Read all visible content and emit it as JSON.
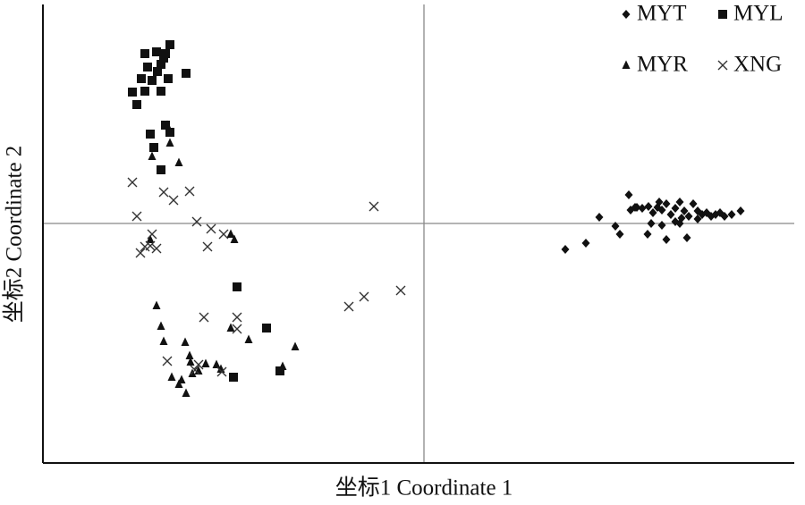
{
  "chart_data": {
    "type": "scatter",
    "xlabel": "坐标1 Coordinate 1",
    "ylabel": "坐标2 Coordinate 2",
    "xlim": [
      -4.26,
      4.14
    ],
    "ylim": [
      -2.68,
      2.45
    ],
    "origin_lines": true,
    "legend": "upper right",
    "series": [
      {
        "name": "MYT",
        "color": "#111111",
        "marker": "diamond",
        "x": [
          1.58,
          1.81,
          1.96,
          2.14,
          2.19,
          2.29,
          2.31,
          2.38,
          2.44,
          2.51,
          2.56,
          2.61,
          2.66,
          2.71,
          2.76,
          2.81,
          2.86,
          2.91,
          2.96,
          3.01,
          3.06,
          3.11,
          3.16,
          3.21,
          3.26,
          3.31,
          3.36,
          3.44,
          3.54,
          2.5,
          2.71,
          2.94,
          2.66,
          2.81,
          2.54,
          2.86,
          3.06,
          2.36,
          2.63,
          2.88
        ],
        "values": [
          -0.29,
          -0.22,
          0.07,
          -0.03,
          -0.12,
          0.32,
          0.15,
          0.18,
          0.17,
          0.19,
          0.12,
          0.18,
          0.15,
          0.22,
          0.1,
          0.17,
          0.24,
          0.14,
          0.08,
          0.22,
          0.14,
          0.1,
          0.12,
          0.08,
          0.1,
          0.12,
          0.08,
          0.1,
          0.14,
          -0.12,
          -0.18,
          -0.16,
          -0.02,
          0.02,
          0.0,
          0.0,
          0.05,
          0.18,
          0.24,
          0.06
        ]
      },
      {
        "name": "MYL",
        "color": "#111111",
        "marker": "square",
        "x": [
          -3.12,
          -2.99,
          -2.84,
          -2.89,
          -3.09,
          -2.94,
          -2.66,
          -3.04,
          -2.86,
          -3.16,
          -3.26,
          -3.12,
          -2.94,
          -3.21,
          -2.89,
          -3.06,
          -2.84,
          -3.02,
          -2.94,
          -2.09,
          -1.76,
          -1.61,
          -2.13,
          -2.91,
          -2.98
        ],
        "values": [
          1.9,
          1.92,
          2.0,
          1.9,
          1.75,
          1.78,
          1.68,
          1.6,
          1.62,
          1.62,
          1.47,
          1.48,
          1.48,
          1.33,
          1.1,
          1.0,
          1.02,
          0.85,
          0.6,
          -0.71,
          -1.17,
          -1.65,
          -1.72,
          1.85,
          1.7
        ]
      },
      {
        "name": "MYR",
        "color": "#111111",
        "marker": "triangle",
        "x": [
          -2.87,
          -2.84,
          -3.04,
          -2.74,
          -2.99,
          -2.94,
          -2.91,
          -2.67,
          -2.16,
          -1.96,
          -2.62,
          -2.44,
          -2.32,
          -2.82,
          -2.71,
          -2.59,
          -2.74,
          -2.66,
          -2.52,
          -2.27,
          -1.58,
          -1.44,
          -3.06,
          -2.12,
          -2.16,
          -2.61
        ],
        "values": [
          1.1,
          0.9,
          0.75,
          0.68,
          -0.92,
          -1.15,
          -1.32,
          -1.33,
          -1.17,
          -1.3,
          -1.48,
          -1.57,
          -1.58,
          -1.72,
          -1.75,
          -1.68,
          -1.8,
          -1.9,
          -1.65,
          -1.63,
          -1.6,
          -1.38,
          -0.18,
          -0.18,
          -0.12,
          -1.55
        ]
      },
      {
        "name": "XNG",
        "color": "#333333",
        "marker": "x",
        "x": [
          -3.26,
          -3.21,
          -2.91,
          -2.8,
          -2.62,
          -2.54,
          -2.38,
          -2.24,
          -2.42,
          -3.04,
          -3.06,
          -3.17,
          -2.99,
          -3.12,
          -0.56,
          -0.26,
          -0.67,
          -0.84,
          -2.46,
          -2.09,
          -2.09,
          -2.87,
          -2.26,
          -2.52,
          -2.56
        ],
        "values": [
          0.46,
          0.08,
          0.35,
          0.26,
          0.36,
          0.02,
          -0.06,
          -0.12,
          -0.26,
          -0.12,
          -0.25,
          -0.33,
          -0.28,
          -0.26,
          0.19,
          -0.75,
          -0.82,
          -0.93,
          -1.05,
          -1.05,
          -1.18,
          -1.54,
          -1.66,
          -1.58,
          -1.64
        ]
      }
    ]
  }
}
